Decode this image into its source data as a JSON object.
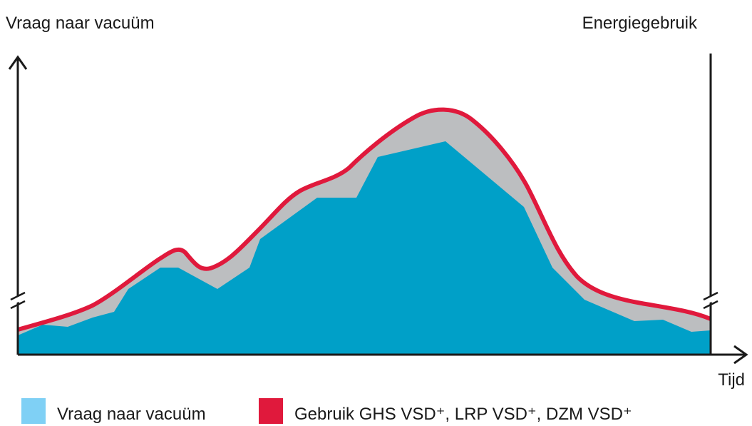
{
  "axes": {
    "left_label": "Vraag naar vacuüm",
    "right_label": "Energiegebruik",
    "x_label": "Tijd"
  },
  "legend": {
    "items": [
      "Vraag naar vacuüm",
      "Gebruik GHS VSD⁺, LRP VSD⁺, DZM VSD⁺"
    ]
  }
}
